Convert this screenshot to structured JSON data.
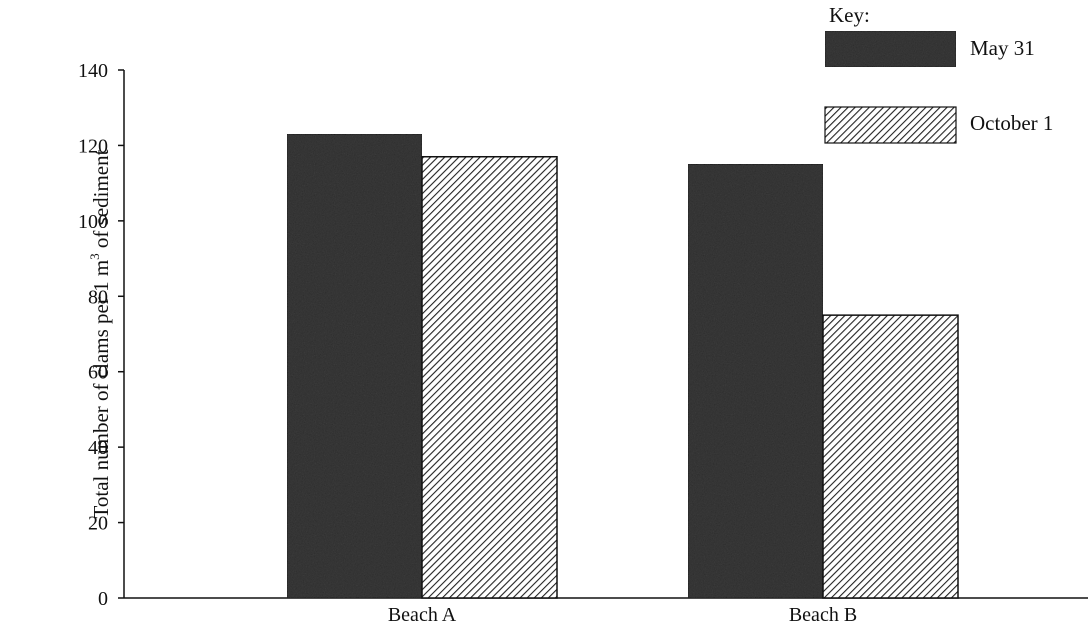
{
  "chart_data": {
    "type": "bar",
    "categories": [
      "Beach A",
      "Beach B"
    ],
    "series": [
      {
        "name": "May 31",
        "values": [
          123,
          115
        ],
        "fill": "#2a2a2a",
        "pattern": "solid-speckled"
      },
      {
        "name": "October 1",
        "values": [
          117,
          75
        ],
        "fill": "#ffffff",
        "pattern": "diagonal-hatch"
      }
    ],
    "ylabel_parts": [
      "Total number of clams per 1 m",
      "3",
      " of sediment"
    ],
    "ylim": [
      0,
      140
    ],
    "yticks": [
      "0",
      "20",
      "40",
      "60",
      "80",
      "100",
      "120",
      "140"
    ],
    "legend": {
      "title": "Key:",
      "placement": "top-right"
    },
    "grid": false
  }
}
